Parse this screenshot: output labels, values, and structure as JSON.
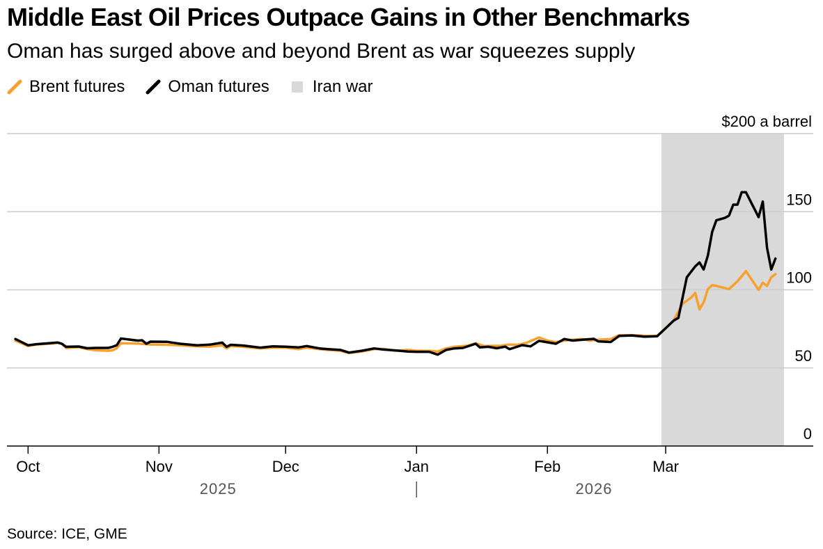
{
  "title": "Middle East Oil Prices Outpace Gains in Other Benchmarks",
  "subtitle": "Oman has surged above and beyond Brent as war squeezes supply",
  "source": "Source: ICE, GME",
  "colors": {
    "brent": "#f7a02d",
    "oman": "#000000",
    "shade": "#d9d9d9",
    "grid": "#cccccc"
  },
  "legend": [
    {
      "label": "Brent futures",
      "kind": "line",
      "color": "#f7a02d"
    },
    {
      "label": "Oman futures",
      "kind": "line",
      "color": "#000000"
    },
    {
      "label": "Iran war",
      "kind": "box",
      "color": "#d9d9d9"
    }
  ],
  "chart_data": {
    "type": "line",
    "title": "Middle East Oil Prices Outpace Gains in Other Benchmarks",
    "ylabel": "$200 a barrel",
    "ylim": [
      0,
      200
    ],
    "yticks": [
      {
        "value": 200,
        "label": "$200 a barrel"
      },
      {
        "value": 150,
        "label": "150"
      },
      {
        "value": 100,
        "label": "100"
      },
      {
        "value": 50,
        "label": "50"
      },
      {
        "value": 0,
        "label": "0"
      }
    ],
    "xlim": [
      "2025-09-26",
      "2026-03-31"
    ],
    "month_ticks": [
      {
        "date": "2025-10-01",
        "label": "Oct"
      },
      {
        "date": "2025-11-01",
        "label": "Nov"
      },
      {
        "date": "2025-12-01",
        "label": "Dec"
      },
      {
        "date": "2026-01-01",
        "label": "Jan"
      },
      {
        "date": "2026-02-01",
        "label": "Feb"
      },
      {
        "date": "2026-03-01",
        "label": "Mar"
      }
    ],
    "year_labels": [
      {
        "date": "2025-11-15",
        "label": "2025"
      },
      {
        "date": "2026-02-12",
        "label": "2026"
      }
    ],
    "year_divider": "2026-01-01",
    "shaded_region": {
      "label": "Iran war",
      "start": "2026-02-28",
      "end": "2026-03-29"
    },
    "series": [
      {
        "name": "Brent futures",
        "color": "#f7a02d",
        "points": [
          [
            "2025-09-28",
            67.5
          ],
          [
            "2025-10-01",
            64
          ],
          [
            "2025-10-03",
            65
          ],
          [
            "2025-10-06",
            65.5
          ],
          [
            "2025-10-08",
            66
          ],
          [
            "2025-10-09",
            65.5
          ],
          [
            "2025-10-10",
            62.7
          ],
          [
            "2025-10-13",
            63.3
          ],
          [
            "2025-10-15",
            62
          ],
          [
            "2025-10-17",
            61.3
          ],
          [
            "2025-10-20",
            61
          ],
          [
            "2025-10-21",
            61.3
          ],
          [
            "2025-10-22",
            62.6
          ],
          [
            "2025-10-23",
            65.8
          ],
          [
            "2025-10-27",
            65.6
          ],
          [
            "2025-10-30",
            65
          ],
          [
            "2025-11-03",
            64.8
          ],
          [
            "2025-11-06",
            64.5
          ],
          [
            "2025-11-10",
            63.8
          ],
          [
            "2025-11-13",
            63.6
          ],
          [
            "2025-11-16",
            64.5
          ],
          [
            "2025-11-17",
            62.5
          ],
          [
            "2025-11-18",
            64.0
          ],
          [
            "2025-11-21",
            63.5
          ],
          [
            "2025-11-25",
            62.5
          ],
          [
            "2025-11-28",
            63
          ],
          [
            "2025-12-01",
            63
          ],
          [
            "2025-12-04",
            62
          ],
          [
            "2025-12-06",
            63
          ],
          [
            "2025-12-09",
            62
          ],
          [
            "2025-12-11",
            61.5
          ],
          [
            "2025-12-14",
            61
          ],
          [
            "2025-12-16",
            59.5
          ],
          [
            "2025-12-19",
            60.5
          ],
          [
            "2025-12-22",
            62
          ],
          [
            "2025-12-24",
            62.2
          ],
          [
            "2025-12-27",
            61
          ],
          [
            "2025-12-30",
            61.5
          ],
          [
            "2026-01-01",
            61
          ],
          [
            "2026-01-04",
            61
          ],
          [
            "2026-01-06",
            60.5
          ],
          [
            "2026-01-08",
            62.5
          ],
          [
            "2026-01-10",
            63.5
          ],
          [
            "2026-01-13",
            64.2
          ],
          [
            "2026-01-15",
            65.8
          ],
          [
            "2026-01-17",
            64
          ],
          [
            "2026-01-21",
            64.2
          ],
          [
            "2026-01-23",
            65
          ],
          [
            "2026-01-25",
            64.8
          ],
          [
            "2026-01-27",
            66
          ],
          [
            "2026-01-30",
            69.5
          ],
          [
            "2026-02-01",
            67.5
          ],
          [
            "2026-02-03",
            66.5
          ],
          [
            "2026-02-05",
            67.5
          ],
          [
            "2026-02-07",
            68
          ],
          [
            "2026-02-09",
            68.5
          ],
          [
            "2026-02-11",
            67.5
          ],
          [
            "2026-02-13",
            68
          ],
          [
            "2026-02-16",
            68.5
          ],
          [
            "2026-02-18",
            71
          ],
          [
            "2026-02-21",
            71
          ],
          [
            "2026-02-25",
            70.5
          ],
          [
            "2026-02-27",
            70.5
          ],
          [
            "2026-03-02",
            77.7
          ],
          [
            "2026-03-03",
            81
          ],
          [
            "2026-03-05",
            91
          ],
          [
            "2026-03-07",
            95
          ],
          [
            "2026-03-08",
            98
          ],
          [
            "2026-03-09",
            87.5
          ],
          [
            "2026-03-10",
            92
          ],
          [
            "2026-03-11",
            100.5
          ],
          [
            "2026-03-12",
            103
          ],
          [
            "2026-03-13",
            102.5
          ],
          [
            "2026-03-16",
            100.5
          ],
          [
            "2026-03-18",
            105.5
          ],
          [
            "2026-03-20",
            112
          ],
          [
            "2026-03-22",
            104
          ],
          [
            "2026-03-23",
            100
          ],
          [
            "2026-03-24",
            104.5
          ],
          [
            "2026-03-25",
            102.5
          ],
          [
            "2026-03-26",
            108
          ],
          [
            "2026-03-27",
            110
          ]
        ]
      },
      {
        "name": "Oman futures",
        "color": "#000000",
        "points": [
          [
            "2025-09-28",
            68.5
          ],
          [
            "2025-10-01",
            64.5
          ],
          [
            "2025-10-03",
            65.2
          ],
          [
            "2025-10-06",
            65.8
          ],
          [
            "2025-10-08",
            66.3
          ],
          [
            "2025-10-09",
            65.5
          ],
          [
            "2025-10-10",
            63.5
          ],
          [
            "2025-10-13",
            63.7
          ],
          [
            "2025-10-15",
            62.6
          ],
          [
            "2025-10-17",
            62.8
          ],
          [
            "2025-10-20",
            62.8
          ],
          [
            "2025-10-21",
            63.5
          ],
          [
            "2025-10-22",
            64.5
          ],
          [
            "2025-10-23",
            68.8
          ],
          [
            "2025-10-27",
            67.5
          ],
          [
            "2025-10-28",
            67.7
          ],
          [
            "2025-10-29",
            65.5
          ],
          [
            "2025-10-30",
            66.8
          ],
          [
            "2025-11-03",
            66.7
          ],
          [
            "2025-11-06",
            65.5
          ],
          [
            "2025-11-10",
            64.5
          ],
          [
            "2025-11-13",
            64.9
          ],
          [
            "2025-11-16",
            66.2
          ],
          [
            "2025-11-17",
            63.5
          ],
          [
            "2025-11-18",
            64.8
          ],
          [
            "2025-11-21",
            64.3
          ],
          [
            "2025-11-25",
            63
          ],
          [
            "2025-11-28",
            63.8
          ],
          [
            "2025-12-01",
            63.6
          ],
          [
            "2025-12-04",
            63.1
          ],
          [
            "2025-12-06",
            64
          ],
          [
            "2025-12-09",
            62.5
          ],
          [
            "2025-12-11",
            62
          ],
          [
            "2025-12-14",
            61.5
          ],
          [
            "2025-12-16",
            59.8
          ],
          [
            "2025-12-19",
            61
          ],
          [
            "2025-12-22",
            62.5
          ],
          [
            "2025-12-24",
            61.8
          ],
          [
            "2025-12-27",
            61.2
          ],
          [
            "2025-12-30",
            60.5
          ],
          [
            "2026-01-01",
            60.3
          ],
          [
            "2026-01-04",
            60.3
          ],
          [
            "2026-01-06",
            58.5
          ],
          [
            "2026-01-08",
            61.5
          ],
          [
            "2026-01-10",
            62.5
          ],
          [
            "2026-01-12",
            62.8
          ],
          [
            "2026-01-15",
            65.5
          ],
          [
            "2026-01-16",
            63.1
          ],
          [
            "2026-01-18",
            63.5
          ],
          [
            "2026-01-20",
            62.6
          ],
          [
            "2026-01-22",
            63.6
          ],
          [
            "2026-01-23",
            62
          ],
          [
            "2026-01-26",
            64.6
          ],
          [
            "2026-01-28",
            63.8
          ],
          [
            "2026-01-30",
            67.3
          ],
          [
            "2026-02-03",
            65.5
          ],
          [
            "2026-02-05",
            68.5
          ],
          [
            "2026-02-07",
            67.5
          ],
          [
            "2026-02-10",
            68.2
          ],
          [
            "2026-02-12",
            68.6
          ],
          [
            "2026-02-13",
            67
          ],
          [
            "2026-02-16",
            66.6
          ],
          [
            "2026-02-18",
            70.5
          ],
          [
            "2026-02-21",
            70.8
          ],
          [
            "2026-02-24",
            70
          ],
          [
            "2026-02-27",
            70.3
          ],
          [
            "2026-03-02",
            78
          ],
          [
            "2026-03-03",
            80.5
          ],
          [
            "2026-03-04",
            82
          ],
          [
            "2026-03-06",
            108
          ],
          [
            "2026-03-08",
            115
          ],
          [
            "2026-03-09",
            117.5
          ],
          [
            "2026-03-10",
            113
          ],
          [
            "2026-03-11",
            122
          ],
          [
            "2026-03-12",
            137
          ],
          [
            "2026-03-13",
            144.5
          ],
          [
            "2026-03-15",
            146
          ],
          [
            "2026-03-16",
            147.5
          ],
          [
            "2026-03-17",
            154.5
          ],
          [
            "2026-03-18",
            154.5
          ],
          [
            "2026-03-19",
            162.5
          ],
          [
            "2026-03-20",
            162.5
          ],
          [
            "2026-03-23",
            146.5
          ],
          [
            "2026-03-24",
            156.5
          ],
          [
            "2026-03-25",
            127
          ],
          [
            "2026-03-26",
            113
          ],
          [
            "2026-03-27",
            120
          ]
        ]
      }
    ]
  }
}
